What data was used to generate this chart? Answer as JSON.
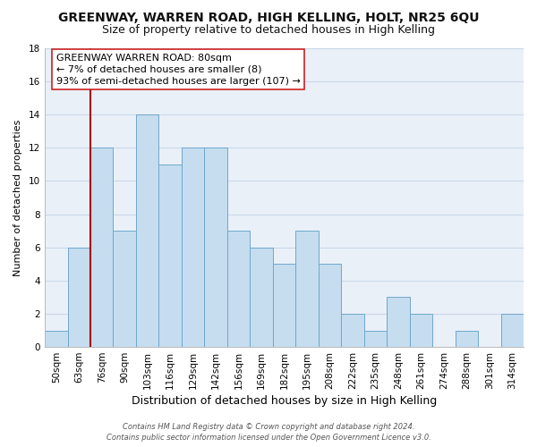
{
  "title": "GREENWAY, WARREN ROAD, HIGH KELLING, HOLT, NR25 6QU",
  "subtitle": "Size of property relative to detached houses in High Kelling",
  "xlabel": "Distribution of detached houses by size in High Kelling",
  "ylabel": "Number of detached properties",
  "bar_labels": [
    "50sqm",
    "63sqm",
    "76sqm",
    "90sqm",
    "103sqm",
    "116sqm",
    "129sqm",
    "142sqm",
    "156sqm",
    "169sqm",
    "182sqm",
    "195sqm",
    "208sqm",
    "222sqm",
    "235sqm",
    "248sqm",
    "261sqm",
    "274sqm",
    "288sqm",
    "301sqm",
    "314sqm"
  ],
  "bar_values": [
    1,
    6,
    12,
    7,
    14,
    11,
    12,
    12,
    7,
    6,
    5,
    7,
    5,
    2,
    1,
    3,
    2,
    0,
    1,
    0,
    2
  ],
  "bar_color": "#c5ddef",
  "bar_edge_color": "#6fa8cc",
  "vline_index": 2,
  "vline_color": "#aa0000",
  "ylim": [
    0,
    18
  ],
  "yticks": [
    0,
    2,
    4,
    6,
    8,
    10,
    12,
    14,
    16,
    18
  ],
  "annotation_text_line1": "GREENWAY WARREN ROAD: 80sqm",
  "annotation_text_line2": "← 7% of detached houses are smaller (8)",
  "annotation_text_line3": "93% of semi-detached houses are larger (107) →",
  "footer_line1": "Contains HM Land Registry data © Crown copyright and database right 2024.",
  "footer_line2": "Contains public sector information licensed under the Open Government Licence v3.0.",
  "title_fontsize": 10,
  "subtitle_fontsize": 9,
  "xlabel_fontsize": 9,
  "ylabel_fontsize": 8,
  "annotation_fontsize": 8,
  "tick_fontsize": 7.5,
  "grid_color": "#c8d8e8",
  "background_color": "#eaf0f8"
}
